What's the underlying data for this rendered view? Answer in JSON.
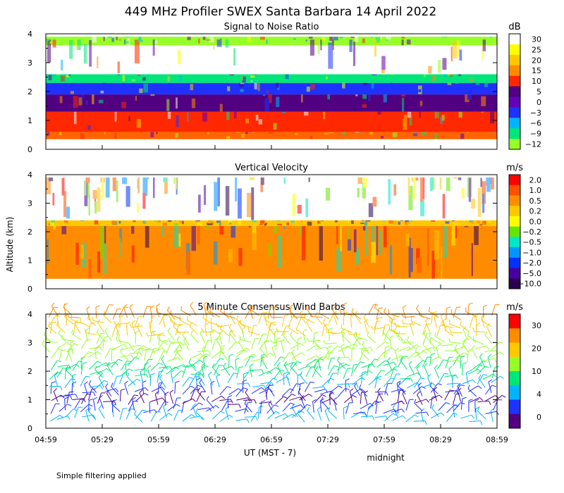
{
  "title": "449 MHz Profiler SWEX Santa Barbara 14 April 2022",
  "y_axis_label": "Altitude (km)",
  "x_axis_label": "UT  (MST - 7)",
  "x_annotation": "midnight",
  "footnote": "Simple filtering applied",
  "x_ticks": [
    "04:59",
    "05:29",
    "05:59",
    "06:29",
    "06:59",
    "07:29",
    "07:59",
    "08:29",
    "08:59"
  ],
  "chart_data": [
    {
      "type": "heatmap",
      "title": "Signal to Noise Ratio",
      "ylim": [
        0,
        4
      ],
      "y_ticks": [
        "0",
        "1",
        "2",
        "3",
        "4"
      ],
      "colorbar": {
        "unit": "dB",
        "labels": [
          "30",
          "25",
          "20",
          "15",
          "10",
          "5",
          "0",
          "−3",
          "−6",
          "−9",
          "−12"
        ],
        "colors": [
          "#ffffff",
          "#ffff00",
          "#ffc800",
          "#ff8c00",
          "#ff2800",
          "#500080",
          "#6400b4",
          "#1e32ff",
          "#00b4ff",
          "#00e678",
          "#96ff28"
        ]
      },
      "layers": [
        {
          "from": 0.35,
          "to": 0.6,
          "color": "#ff6400"
        },
        {
          "from": 0.6,
          "to": 1.3,
          "color": "#ff2800"
        },
        {
          "from": 1.3,
          "to": 1.9,
          "color": "#500080"
        },
        {
          "from": 1.9,
          "to": 2.3,
          "color": "#1e32ff"
        },
        {
          "from": 2.3,
          "to": 2.6,
          "color": "#00e678"
        },
        {
          "from": 2.6,
          "to": 3.8,
          "color": "#ffffff"
        },
        {
          "from": 3.6,
          "to": 3.9,
          "color": "#96ff28"
        }
      ]
    },
    {
      "type": "heatmap",
      "title": "Vertical Velocity",
      "ylim": [
        0,
        4
      ],
      "y_ticks": [
        "0",
        "1",
        "2",
        "3",
        "4"
      ],
      "colorbar": {
        "unit": "m/s",
        "labels": [
          "2.0",
          "1.0",
          "0.5",
          "0.2",
          "0.0",
          "−0.2",
          "−0.5",
          "−1.0",
          "−2.0",
          "−5.0",
          "−10.0"
        ],
        "colors": [
          "#ff0000",
          "#ff5000",
          "#ff8c00",
          "#ffc800",
          "#ffff00",
          "#64e600",
          "#00e6c8",
          "#0096ff",
          "#0032ff",
          "#4600a0",
          "#2a0050"
        ]
      },
      "layers": [
        {
          "from": 0.35,
          "to": 2.2,
          "color": "#ff8c00"
        },
        {
          "from": 2.2,
          "to": 2.4,
          "color": "#ffc800"
        },
        {
          "from": 2.4,
          "to": 3.9,
          "color": "#ffffff"
        }
      ]
    },
    {
      "type": "scatter",
      "title": "5 Minute Consensus Wind Barbs",
      "ylim": [
        0,
        4
      ],
      "y_ticks": [
        "0",
        "1",
        "2",
        "3",
        "4"
      ],
      "colorbar": {
        "unit": "m/s",
        "labels": [
          "30",
          "20",
          "10",
          "4",
          "0"
        ],
        "colors": [
          "#ff0000",
          "#ff8c00",
          "#ffc800",
          "#96ff28",
          "#00e678",
          "#00b4ff",
          "#1e32ff",
          "#500080"
        ]
      },
      "barb_rows": [
        {
          "altitude": 0.3,
          "color": "#00b4ff"
        },
        {
          "altitude": 0.6,
          "color": "#1e32ff"
        },
        {
          "altitude": 0.9,
          "color": "#500080"
        },
        {
          "altitude": 1.2,
          "color": "#1e32ff"
        },
        {
          "altitude": 1.5,
          "color": "#00b4ff"
        },
        {
          "altitude": 1.8,
          "color": "#00e678"
        },
        {
          "altitude": 2.1,
          "color": "#00e678"
        },
        {
          "altitude": 2.4,
          "color": "#96ff28"
        },
        {
          "altitude": 2.7,
          "color": "#96ff28"
        },
        {
          "altitude": 3.0,
          "color": "#96ff28"
        },
        {
          "altitude": 3.3,
          "color": "#ffc800"
        },
        {
          "altitude": 3.6,
          "color": "#ffc800"
        },
        {
          "altitude": 3.9,
          "color": "#ff8c00"
        }
      ]
    }
  ]
}
